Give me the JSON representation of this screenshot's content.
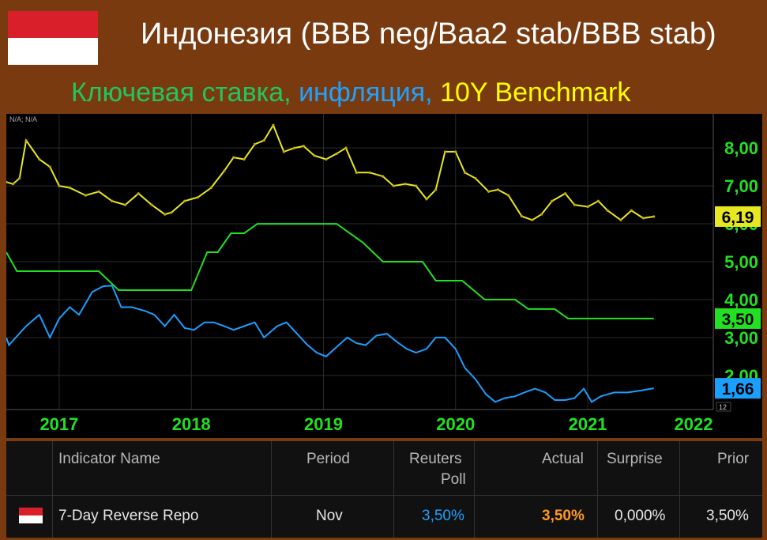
{
  "header": {
    "title": "Индонезия (BBB neg/Baa2 stab/BBB stab)",
    "subtitle_parts": [
      {
        "text": "Ключевая ставка, ",
        "color": "#22c55e"
      },
      {
        "text": "инфляция, ",
        "color": "#1fa2ff"
      },
      {
        "text": "10Y Benchmark",
        "color": "#ffff00"
      }
    ]
  },
  "chart_data": {
    "type": "line",
    "corner_label": "N/A; N/A",
    "x_ticks": [
      "2017",
      "2018",
      "2019",
      "2020",
      "2021",
      "2022"
    ],
    "y_ticks": [
      "2,00",
      "3,00",
      "4,00",
      "5,00",
      "6,00",
      "7,00",
      "8,00"
    ],
    "ylim": [
      1.1,
      8.9
    ],
    "xlim": [
      2016.6,
      2021.95
    ],
    "series": [
      {
        "name": "10Y Benchmark",
        "color": "#e8e822",
        "last_label": "6,19",
        "points": [
          [
            2016.6,
            7.1
          ],
          [
            2016.65,
            7.05
          ],
          [
            2016.7,
            7.2
          ],
          [
            2016.75,
            8.2
          ],
          [
            2016.85,
            7.7
          ],
          [
            2016.93,
            7.5
          ],
          [
            2017.0,
            7.0
          ],
          [
            2017.08,
            6.95
          ],
          [
            2017.2,
            6.75
          ],
          [
            2017.3,
            6.85
          ],
          [
            2017.4,
            6.6
          ],
          [
            2017.5,
            6.5
          ],
          [
            2017.6,
            6.8
          ],
          [
            2017.7,
            6.5
          ],
          [
            2017.8,
            6.25
          ],
          [
            2017.85,
            6.3
          ],
          [
            2017.95,
            6.6
          ],
          [
            2018.05,
            6.7
          ],
          [
            2018.15,
            6.95
          ],
          [
            2018.25,
            7.4
          ],
          [
            2018.32,
            7.75
          ],
          [
            2018.4,
            7.7
          ],
          [
            2018.48,
            8.1
          ],
          [
            2018.55,
            8.2
          ],
          [
            2018.62,
            8.6
          ],
          [
            2018.7,
            7.9
          ],
          [
            2018.78,
            8.0
          ],
          [
            2018.85,
            8.05
          ],
          [
            2018.93,
            7.8
          ],
          [
            2019.02,
            7.7
          ],
          [
            2019.1,
            7.85
          ],
          [
            2019.17,
            8.0
          ],
          [
            2019.25,
            7.35
          ],
          [
            2019.35,
            7.35
          ],
          [
            2019.45,
            7.25
          ],
          [
            2019.53,
            7.0
          ],
          [
            2019.62,
            7.05
          ],
          [
            2019.7,
            7.0
          ],
          [
            2019.78,
            6.65
          ],
          [
            2019.85,
            6.9
          ],
          [
            2019.92,
            7.9
          ],
          [
            2020.0,
            7.9
          ],
          [
            2020.07,
            7.35
          ],
          [
            2020.15,
            7.2
          ],
          [
            2020.25,
            6.85
          ],
          [
            2020.32,
            6.9
          ],
          [
            2020.4,
            6.75
          ],
          [
            2020.5,
            6.2
          ],
          [
            2020.58,
            6.1
          ],
          [
            2020.65,
            6.25
          ],
          [
            2020.73,
            6.6
          ],
          [
            2020.83,
            6.8
          ],
          [
            2020.9,
            6.5
          ],
          [
            2021.0,
            6.45
          ],
          [
            2021.08,
            6.6
          ],
          [
            2021.15,
            6.35
          ],
          [
            2021.25,
            6.1
          ],
          [
            2021.33,
            6.35
          ],
          [
            2021.42,
            6.15
          ],
          [
            2021.5,
            6.19
          ]
        ]
      },
      {
        "name": "Ключевая ставка",
        "color": "#22e022",
        "last_label": "3,50",
        "points": [
          [
            2016.6,
            5.25
          ],
          [
            2016.68,
            4.75
          ],
          [
            2017.3,
            4.75
          ],
          [
            2017.45,
            4.25
          ],
          [
            2018.0,
            4.25
          ],
          [
            2018.12,
            5.25
          ],
          [
            2018.2,
            5.25
          ],
          [
            2018.3,
            5.75
          ],
          [
            2018.4,
            5.75
          ],
          [
            2018.5,
            6.0
          ],
          [
            2019.1,
            6.0
          ],
          [
            2019.3,
            5.5
          ],
          [
            2019.45,
            5.0
          ],
          [
            2019.75,
            5.0
          ],
          [
            2019.85,
            4.5
          ],
          [
            2020.05,
            4.5
          ],
          [
            2020.22,
            4.0
          ],
          [
            2020.45,
            4.0
          ],
          [
            2020.55,
            3.75
          ],
          [
            2020.75,
            3.75
          ],
          [
            2020.85,
            3.5
          ],
          [
            2021.5,
            3.5
          ]
        ]
      },
      {
        "name": "инфляция",
        "color": "#1a9fff",
        "last_label": "1,66",
        "points": [
          [
            2016.6,
            3.0
          ],
          [
            2016.62,
            2.8
          ],
          [
            2016.75,
            3.3
          ],
          [
            2016.85,
            3.6
          ],
          [
            2016.93,
            3.0
          ],
          [
            2017.0,
            3.5
          ],
          [
            2017.08,
            3.8
          ],
          [
            2017.15,
            3.6
          ],
          [
            2017.25,
            4.2
          ],
          [
            2017.33,
            4.35
          ],
          [
            2017.4,
            4.37
          ],
          [
            2017.47,
            3.8
          ],
          [
            2017.55,
            3.8
          ],
          [
            2017.65,
            3.7
          ],
          [
            2017.72,
            3.6
          ],
          [
            2017.8,
            3.3
          ],
          [
            2017.87,
            3.6
          ],
          [
            2017.95,
            3.25
          ],
          [
            2018.02,
            3.2
          ],
          [
            2018.1,
            3.4
          ],
          [
            2018.17,
            3.4
          ],
          [
            2018.25,
            3.3
          ],
          [
            2018.32,
            3.2
          ],
          [
            2018.4,
            3.3
          ],
          [
            2018.48,
            3.4
          ],
          [
            2018.55,
            3.0
          ],
          [
            2018.65,
            3.3
          ],
          [
            2018.72,
            3.4
          ],
          [
            2018.8,
            3.1
          ],
          [
            2018.88,
            2.8
          ],
          [
            2018.95,
            2.6
          ],
          [
            2019.02,
            2.5
          ],
          [
            2019.1,
            2.75
          ],
          [
            2019.18,
            3.0
          ],
          [
            2019.25,
            2.85
          ],
          [
            2019.32,
            2.8
          ],
          [
            2019.4,
            3.05
          ],
          [
            2019.48,
            3.1
          ],
          [
            2019.55,
            2.9
          ],
          [
            2019.63,
            2.7
          ],
          [
            2019.7,
            2.6
          ],
          [
            2019.78,
            2.7
          ],
          [
            2019.85,
            3.0
          ],
          [
            2019.92,
            3.0
          ],
          [
            2020.0,
            2.7
          ],
          [
            2020.07,
            2.2
          ],
          [
            2020.15,
            1.9
          ],
          [
            2020.23,
            1.5
          ],
          [
            2020.3,
            1.3
          ],
          [
            2020.37,
            1.4
          ],
          [
            2020.45,
            1.45
          ],
          [
            2020.52,
            1.55
          ],
          [
            2020.6,
            1.65
          ],
          [
            2020.68,
            1.55
          ],
          [
            2020.75,
            1.35
          ],
          [
            2020.83,
            1.35
          ],
          [
            2020.9,
            1.4
          ],
          [
            2020.97,
            1.65
          ],
          [
            2021.03,
            1.3
          ],
          [
            2021.1,
            1.45
          ],
          [
            2021.2,
            1.55
          ],
          [
            2021.3,
            1.55
          ],
          [
            2021.4,
            1.6
          ],
          [
            2021.5,
            1.66
          ]
        ]
      }
    ],
    "small_label": "12"
  },
  "table": {
    "headers": {
      "indicator": "Indicator Name",
      "period": "Period",
      "poll_line1": "Reuters",
      "poll_line2": "Poll",
      "actual": "Actual",
      "surprise": "Surprise",
      "prior": "Prior"
    },
    "row": {
      "indicator": "7-Day Reverse Repo",
      "period": "Nov",
      "poll": "3,50%",
      "actual": "3,50%",
      "surprise": "0,000%",
      "prior": "3,50%"
    },
    "colors": {
      "poll": "#1fa2ff",
      "actual": "#ff9a1f"
    }
  }
}
